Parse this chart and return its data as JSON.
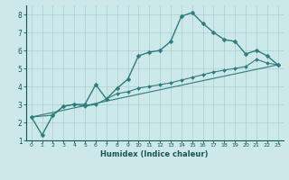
{
  "xlabel": "Humidex (Indice chaleur)",
  "ylabel": "",
  "xlim": [
    -0.5,
    23.5
  ],
  "ylim": [
    1,
    8.5
  ],
  "yticks": [
    1,
    2,
    3,
    4,
    5,
    6,
    7,
    8
  ],
  "xticks": [
    0,
    1,
    2,
    3,
    4,
    5,
    6,
    7,
    8,
    9,
    10,
    11,
    12,
    13,
    14,
    15,
    16,
    17,
    18,
    19,
    20,
    21,
    22,
    23
  ],
  "bg_color": "#cce8e8",
  "grid_color": "#aacfcf",
  "line_color": "#2d7d7d",
  "line1_x": [
    0,
    1,
    2,
    3,
    4,
    5,
    6,
    7,
    8,
    9,
    10,
    11,
    12,
    13,
    14,
    15,
    16,
    17,
    18,
    19,
    20,
    21,
    22,
    23
  ],
  "line1_y": [
    2.3,
    1.3,
    2.4,
    2.9,
    3.0,
    3.0,
    4.1,
    3.3,
    3.9,
    4.4,
    5.7,
    5.9,
    6.0,
    6.5,
    7.9,
    8.1,
    7.5,
    7.0,
    6.6,
    6.5,
    5.8,
    6.0,
    5.7,
    5.2
  ],
  "line2_x": [
    0,
    2,
    3,
    4,
    5,
    6,
    7,
    8,
    9,
    10,
    11,
    12,
    13,
    14,
    15,
    16,
    17,
    18,
    19,
    20,
    21,
    22,
    23
  ],
  "line2_y": [
    2.3,
    2.4,
    2.9,
    3.0,
    2.9,
    3.0,
    3.3,
    3.6,
    3.7,
    3.9,
    4.0,
    4.1,
    4.2,
    4.35,
    4.5,
    4.65,
    4.8,
    4.9,
    5.0,
    5.1,
    5.5,
    5.3,
    5.2
  ],
  "line3_x": [
    0,
    23
  ],
  "line3_y": [
    2.3,
    5.2
  ]
}
